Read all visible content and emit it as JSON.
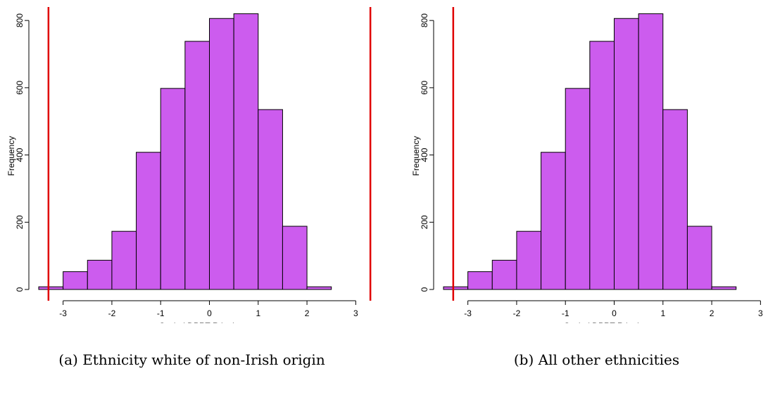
{
  "chart_data": [
    {
      "type": "bar",
      "subplot_label": "(a)",
      "caption": "Ethnicity white of non-Irish origin",
      "xlabel": "Scaled DPRT-R logit score",
      "ylabel": "Frequency",
      "bin_edges": [
        -3.5,
        -3.0,
        -2.5,
        -2.0,
        -1.5,
        -1.0,
        -0.5,
        0.0,
        0.5,
        1.0,
        1.5,
        2.0,
        2.5
      ],
      "values": [
        8,
        53,
        87,
        173,
        408,
        598,
        738,
        806,
        820,
        535,
        188,
        8
      ],
      "xticks": [
        -3,
        -2,
        -1,
        0,
        1,
        2,
        3
      ],
      "yticks": [
        0,
        200,
        400,
        600,
        800
      ],
      "xlim": [
        -3.5,
        3.5
      ],
      "ylim": [
        0,
        840
      ],
      "bar_color": "#cc5cee",
      "vlines": [
        -3.3,
        3.3
      ],
      "vline_color": "#e00000",
      "grid": false
    },
    {
      "type": "bar",
      "subplot_label": "(b)",
      "caption": "All other ethnicities",
      "xlabel": "Scaled DPRT-R logit score",
      "ylabel": "Frequency",
      "bin_edges": [
        -3.5,
        -3.0,
        -2.5,
        -2.0,
        -1.5,
        -1.0,
        -0.5,
        0.0,
        0.5,
        1.0,
        1.5,
        2.0,
        2.5
      ],
      "values": [
        8,
        53,
        87,
        173,
        408,
        598,
        738,
        806,
        820,
        535,
        188,
        8
      ],
      "xticks": [
        -3,
        -2,
        -1,
        0,
        1,
        2,
        3
      ],
      "yticks": [
        0,
        200,
        400,
        600,
        800
      ],
      "xlim": [
        -3.5,
        3.5
      ],
      "ylim": [
        0,
        840
      ],
      "bar_color": "#cc5cee",
      "vlines": [
        -3.3
      ],
      "vline_color": "#e00000",
      "grid": false
    }
  ]
}
